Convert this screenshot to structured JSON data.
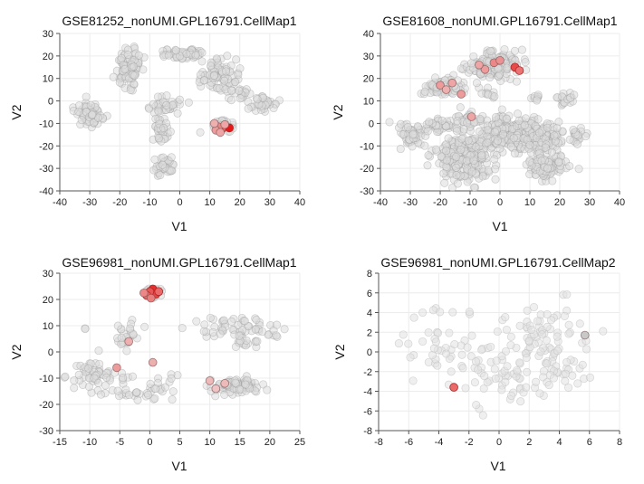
{
  "chart_data": [
    {
      "type": "scatter",
      "title": "GSE81252_nonUMI.GPL16791.CellMap1",
      "xlabel": "V1",
      "ylabel": "V2",
      "xlim": [
        -40,
        40
      ],
      "ylim": [
        -40,
        30
      ],
      "xticks": [
        -40,
        -30,
        -20,
        -10,
        0,
        10,
        20,
        30,
        40
      ],
      "yticks": [
        -40,
        -30,
        -20,
        -10,
        0,
        10,
        20,
        30
      ],
      "grid": true,
      "clusters": [
        {
          "cx": -30,
          "cy": -6,
          "sx": 2.2,
          "sy": 2.6,
          "n": 70
        },
        {
          "cx": -17,
          "cy": 15,
          "sx": 2.3,
          "sy": 4.0,
          "n": 110
        },
        {
          "cx": 2,
          "cy": 21,
          "sx": 3.2,
          "sy": 1.2,
          "n": 60
        },
        {
          "cx": 13,
          "cy": 11,
          "sx": 3.5,
          "sy": 4.0,
          "n": 90
        },
        {
          "cx": -5,
          "cy": -2,
          "sx": 2.5,
          "sy": 2.0,
          "n": 40
        },
        {
          "cx": -6,
          "cy": -13,
          "sx": 1.2,
          "sy": 2.5,
          "n": 35
        },
        {
          "cx": -5,
          "cy": -29,
          "sx": 1.5,
          "sy": 2.0,
          "n": 40
        },
        {
          "cx": 28,
          "cy": -1,
          "sx": 2.2,
          "sy": 1.6,
          "n": 40
        },
        {
          "cx": 21,
          "cy": 3,
          "sx": 1.2,
          "sy": 1.6,
          "n": 12
        },
        {
          "cx": 14,
          "cy": -11,
          "sx": 2.2,
          "sy": 1.6,
          "n": 35
        }
      ],
      "highlighted": [
        {
          "x": 16.5,
          "y": -12,
          "intensity": 1.0
        },
        {
          "x": 14,
          "y": -12.5,
          "intensity": 0.6
        },
        {
          "x": 13,
          "y": -11.5,
          "intensity": 0.45
        },
        {
          "x": 12,
          "y": -13,
          "intensity": 0.35
        },
        {
          "x": 15,
          "y": -10.5,
          "intensity": 0.3
        },
        {
          "x": 13.5,
          "y": -14,
          "intensity": 0.3
        },
        {
          "x": 11.5,
          "y": -10,
          "intensity": 0.25
        }
      ]
    },
    {
      "type": "scatter",
      "title": "GSE81608_nonUMI.GPL16791.CellMap1",
      "xlabel": "V1",
      "ylabel": "V2",
      "xlim": [
        -40,
        40
      ],
      "ylim": [
        -30,
        40
      ],
      "xticks": [
        -40,
        -30,
        -20,
        -10,
        0,
        10,
        20,
        30,
        40
      ],
      "yticks": [
        -30,
        -20,
        -10,
        0,
        10,
        20,
        30,
        40
      ],
      "grid": true,
      "clusters": [
        {
          "cx": -30,
          "cy": -6,
          "sx": 2.5,
          "sy": 2.5,
          "n": 55
        },
        {
          "cx": -19,
          "cy": 16,
          "sx": 3.0,
          "sy": 2.2,
          "n": 70
        },
        {
          "cx": -2,
          "cy": 26,
          "sx": 4.0,
          "sy": 3.2,
          "n": 180
        },
        {
          "cx": -20,
          "cy": -1,
          "sx": 3.0,
          "sy": 1.5,
          "n": 40
        },
        {
          "cx": -11,
          "cy": 2,
          "sx": 1.8,
          "sy": 2.2,
          "n": 30
        },
        {
          "cx": -12,
          "cy": -15,
          "sx": 5.0,
          "sy": 5.0,
          "n": 260
        },
        {
          "cx": 3,
          "cy": -4,
          "sx": 5.0,
          "sy": 3.5,
          "n": 200
        },
        {
          "cx": 13,
          "cy": -7,
          "sx": 4.0,
          "sy": 3.5,
          "n": 120
        },
        {
          "cx": 16,
          "cy": -19,
          "sx": 4.0,
          "sy": 2.5,
          "n": 90
        },
        {
          "cx": 22,
          "cy": 11,
          "sx": 1.2,
          "sy": 1.4,
          "n": 18
        },
        {
          "cx": 12,
          "cy": 12,
          "sx": 1.0,
          "sy": 1.0,
          "n": 8
        },
        {
          "cx": -4,
          "cy": 13,
          "sx": 1.2,
          "sy": 1.0,
          "n": 10
        },
        {
          "cx": 26,
          "cy": -5,
          "sx": 1.5,
          "sy": 2.5,
          "n": 20
        }
      ],
      "highlighted": [
        {
          "x": 5,
          "y": 25,
          "intensity": 0.75
        },
        {
          "x": 6.5,
          "y": 23.5,
          "intensity": 0.55
        },
        {
          "x": -2,
          "y": 27,
          "intensity": 0.45
        },
        {
          "x": 0,
          "y": 28,
          "intensity": 0.4
        },
        {
          "x": -5,
          "y": 24,
          "intensity": 0.35
        },
        {
          "x": -7,
          "y": 26,
          "intensity": 0.3
        },
        {
          "x": -20,
          "y": 17,
          "intensity": 0.35
        },
        {
          "x": -16,
          "y": 18,
          "intensity": 0.3
        },
        {
          "x": -13,
          "y": 13,
          "intensity": 0.35
        },
        {
          "x": -9.5,
          "y": 3,
          "intensity": 0.3
        },
        {
          "x": -18,
          "y": 15,
          "intensity": 0.25
        }
      ]
    },
    {
      "type": "scatter",
      "title": "GSE96981_nonUMI.GPL16791.CellMap1",
      "xlabel": "V1",
      "ylabel": "V2",
      "xlim": [
        -15,
        25
      ],
      "ylim": [
        -30,
        30
      ],
      "xticks": [
        -15,
        -10,
        -5,
        0,
        5,
        10,
        15,
        20,
        25
      ],
      "yticks": [
        -30,
        -20,
        -10,
        0,
        10,
        20,
        30
      ],
      "grid": true,
      "clusters": [
        {
          "cx": 0.5,
          "cy": 22.5,
          "sx": 0.6,
          "sy": 0.8,
          "n": 50
        },
        {
          "cx": 14,
          "cy": 9,
          "sx": 3.5,
          "sy": 2.2,
          "n": 55
        },
        {
          "cx": 16,
          "cy": 3,
          "sx": 1.5,
          "sy": 1.5,
          "n": 15
        },
        {
          "cx": 14.5,
          "cy": -13,
          "sx": 2.2,
          "sy": 1.5,
          "n": 90
        },
        {
          "cx": -9,
          "cy": -9,
          "sx": 2.5,
          "sy": 2.5,
          "n": 60
        },
        {
          "cx": -2,
          "cy": -16,
          "sx": 2.5,
          "sy": 1.5,
          "n": 25
        },
        {
          "cx": -4,
          "cy": 6,
          "sx": 1.5,
          "sy": 3.5,
          "n": 25
        },
        {
          "cx": 3,
          "cy": -13,
          "sx": 1.5,
          "sy": 2.5,
          "n": 12
        },
        {
          "cx": -10.5,
          "cy": 9,
          "sx": 0.3,
          "sy": 0.3,
          "n": 2
        },
        {
          "cx": 21,
          "cy": 6,
          "sx": 0.3,
          "sy": 0.3,
          "n": 2
        }
      ],
      "highlighted": [
        {
          "x": 0.5,
          "y": 24,
          "intensity": 0.9
        },
        {
          "x": 1,
          "y": 22,
          "intensity": 0.8
        },
        {
          "x": 0,
          "y": 23,
          "intensity": 0.7
        },
        {
          "x": -0.5,
          "y": 21.5,
          "intensity": 0.6
        },
        {
          "x": 1.5,
          "y": 23,
          "intensity": 0.6
        },
        {
          "x": 0.2,
          "y": 20.5,
          "intensity": 0.5
        },
        {
          "x": -1,
          "y": 22.5,
          "intensity": 0.45
        },
        {
          "x": -5.5,
          "y": -6,
          "intensity": 0.35
        },
        {
          "x": -3.5,
          "y": 4,
          "intensity": 0.25
        },
        {
          "x": 0.5,
          "y": -4,
          "intensity": 0.25
        },
        {
          "x": 10,
          "y": -11,
          "intensity": 0.2
        },
        {
          "x": 12.5,
          "y": -12,
          "intensity": 0.2
        },
        {
          "x": 11,
          "y": -14,
          "intensity": 0.15
        }
      ]
    },
    {
      "type": "scatter",
      "title": "GSE96981_nonUMI.GPL16791.CellMap2",
      "xlabel": "V1",
      "ylabel": "V2",
      "xlim": [
        -8,
        8
      ],
      "ylim": [
        -8,
        8
      ],
      "xticks": [
        -8,
        -6,
        -4,
        -2,
        0,
        2,
        4,
        6,
        8
      ],
      "yticks": [
        -8,
        -6,
        -4,
        -2,
        0,
        2,
        4,
        6,
        8
      ],
      "grid": true,
      "clusters": [
        {
          "cx": -3.5,
          "cy": 0.5,
          "sx": 1.6,
          "sy": 1.8,
          "n": 50
        },
        {
          "cx": 0,
          "cy": -2.5,
          "sx": 1.5,
          "sy": 1.5,
          "n": 45
        },
        {
          "cx": 3,
          "cy": 1.5,
          "sx": 1.6,
          "sy": 1.8,
          "n": 80
        },
        {
          "cx": 4,
          "cy": -2.5,
          "sx": 1.2,
          "sy": 1.2,
          "n": 25
        }
      ],
      "highlighted": [
        {
          "x": -3,
          "y": -3.6,
          "intensity": 0.6
        },
        {
          "x": 5.7,
          "y": 1.7,
          "intensity": 0.0
        }
      ]
    }
  ]
}
